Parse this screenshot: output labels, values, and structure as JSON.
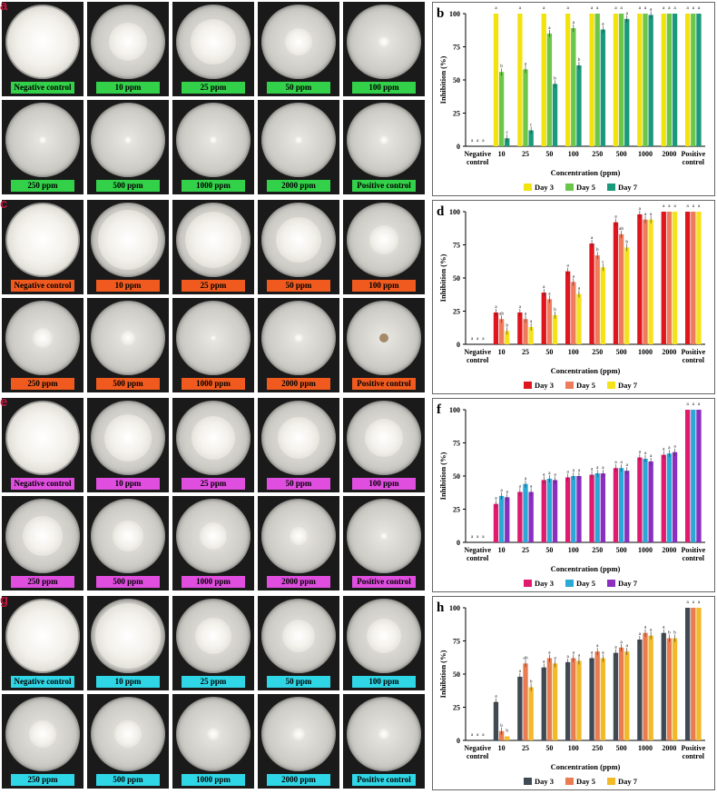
{
  "panels": [
    {
      "letter": "a",
      "label_color": "#33d14a",
      "labels": [
        "Negative control",
        "10 ppm",
        "25 ppm",
        "50 ppm",
        "100 ppm",
        "250 ppm",
        "500 ppm",
        "1000 ppm",
        "2000 ppm",
        "Positive control"
      ]
    },
    {
      "letter": "c",
      "label_color": "#f05a1e",
      "labels": [
        "Negative control",
        "10 ppm",
        "25 ppm",
        "50 ppm",
        "100 ppm",
        "250 ppm",
        "500 ppm",
        "1000 ppm",
        "2000 ppm",
        "Positive control"
      ]
    },
    {
      "letter": "e",
      "label_color": "#e04ee0",
      "labels": [
        "Negative control",
        "10 ppm",
        "25 ppm",
        "50 ppm",
        "100 ppm",
        "250 ppm",
        "500 ppm",
        "1000 ppm",
        "2000 ppm",
        "Positive control"
      ]
    },
    {
      "letter": "g",
      "label_color": "#2fd6e6",
      "labels": [
        "Negative control",
        "10 ppm",
        "25 ppm",
        "50 ppm",
        "100 ppm",
        "250 ppm",
        "500 ppm",
        "1000 ppm",
        "2000 ppm",
        "Positive control"
      ]
    }
  ],
  "chart_data": [
    {
      "letter": "b",
      "type": "bar",
      "title": "",
      "xlabel": "Concentration (ppm)",
      "ylabel": "Inhibition (%)",
      "ylim": [
        0,
        100
      ],
      "yticks": [
        0,
        25,
        50,
        75,
        100
      ],
      "categories": [
        "Negative control",
        "10",
        "25",
        "50",
        "100",
        "250",
        "500",
        "1000",
        "2000",
        "Positive control"
      ],
      "series": [
        {
          "name": "Day 3",
          "color": "#f2e30f",
          "values": [
            0,
            100,
            100,
            100,
            100,
            100,
            100,
            100,
            100,
            100
          ],
          "letters": [
            "a",
            "a",
            "a",
            "a",
            "a",
            "a",
            "a",
            "a",
            "a",
            "a"
          ]
        },
        {
          "name": "Day 5",
          "color": "#6cc64b",
          "values": [
            0,
            56,
            58,
            85,
            89,
            100,
            100,
            100,
            100,
            100
          ],
          "letters": [
            "a",
            "b",
            "a",
            "a",
            "a",
            "a",
            "a",
            "a",
            "a",
            "a"
          ]
        },
        {
          "name": "Day 7",
          "color": "#1a9a7a",
          "values": [
            0,
            6,
            12,
            47,
            61,
            88,
            96,
            99,
            100,
            100
          ],
          "letters": [
            "a",
            "c",
            "c",
            "b",
            "b",
            "a",
            "a",
            "a",
            "a",
            "a"
          ]
        }
      ]
    },
    {
      "letter": "d",
      "type": "bar",
      "title": "",
      "xlabel": "Concentration (ppm)",
      "ylabel": "Inhibition (%)",
      "ylim": [
        0,
        100
      ],
      "yticks": [
        0,
        25,
        50,
        75,
        100
      ],
      "categories": [
        "Negative control",
        "10",
        "25",
        "50",
        "100",
        "250",
        "500",
        "1000",
        "2000",
        "Positive control"
      ],
      "series": [
        {
          "name": "Day 3",
          "color": "#e0161e",
          "values": [
            0,
            24,
            24,
            39,
            55,
            76,
            92,
            98,
            100,
            100
          ],
          "letters": [
            "a",
            "a",
            "a",
            "a",
            "a",
            "a",
            "a",
            "a",
            "a",
            "a"
          ]
        },
        {
          "name": "Day 5",
          "color": "#ee7b5c",
          "values": [
            0,
            19,
            19,
            34,
            47,
            67,
            83,
            94,
            100,
            100
          ],
          "letters": [
            "a",
            "ab",
            "a",
            "a",
            "a",
            "b",
            "ab",
            "a",
            "a",
            "a"
          ]
        },
        {
          "name": "Day 7",
          "color": "#f6e21a",
          "values": [
            0,
            10,
            13,
            22,
            38,
            58,
            73,
            94,
            100,
            100
          ],
          "letters": [
            "a",
            "b",
            "a",
            "b",
            "a",
            "c",
            "b",
            "a",
            "a",
            "a"
          ]
        }
      ]
    },
    {
      "letter": "f",
      "type": "bar",
      "title": "",
      "xlabel": "Concentration (ppm)",
      "ylabel": "Inhibition (%)",
      "ylim": [
        0,
        100
      ],
      "yticks": [
        0,
        25,
        50,
        75,
        100
      ],
      "categories": [
        "Negative control",
        "10",
        "25",
        "50",
        "100",
        "250",
        "500",
        "1000",
        "2000",
        "Positive control"
      ],
      "series": [
        {
          "name": "Day 3",
          "color": "#e01a6e",
          "values": [
            0,
            29,
            38,
            47,
            49,
            51,
            56,
            64,
            66,
            100
          ],
          "letters": [
            "a",
            "a",
            "a",
            "a",
            "a",
            "a",
            "a",
            "a",
            "a",
            "a"
          ]
        },
        {
          "name": "Day 5",
          "color": "#2aa8d6",
          "values": [
            0,
            35,
            44,
            48,
            50,
            52,
            56,
            63,
            67,
            100
          ],
          "letters": [
            "a",
            "a",
            "a",
            "a",
            "a",
            "a",
            "a",
            "a",
            "a",
            "a"
          ]
        },
        {
          "name": "Day 7",
          "color": "#8a2fc0",
          "values": [
            0,
            34,
            38,
            47,
            50,
            52,
            54,
            61,
            68,
            100
          ],
          "letters": [
            "a",
            "a",
            "a",
            "a",
            "a",
            "a",
            "a",
            "a",
            "a",
            "a"
          ]
        }
      ]
    },
    {
      "letter": "h",
      "type": "bar",
      "title": "",
      "xlabel": "Concentration (ppm)",
      "ylabel": "Inhibition (%)",
      "ylim": [
        0,
        100
      ],
      "yticks": [
        0,
        25,
        50,
        75,
        100
      ],
      "categories": [
        "Negative control",
        "10",
        "25",
        "50",
        "100",
        "250",
        "500",
        "1000",
        "2000",
        "Positive control"
      ],
      "series": [
        {
          "name": "Day 3",
          "color": "#404a55",
          "values": [
            0,
            29,
            48,
            55,
            59,
            62,
            66,
            76,
            81,
            100
          ],
          "letters": [
            "a",
            "a",
            "a",
            "a",
            "a",
            "a",
            "a",
            "a",
            "a",
            "a"
          ]
        },
        {
          "name": "Day 5",
          "color": "#ea7c52",
          "values": [
            0,
            7,
            58,
            62,
            62,
            67,
            70,
            81,
            77,
            100
          ],
          "letters": [
            "a",
            "b",
            "ab",
            "a",
            "a",
            "a",
            "a",
            "a",
            "b",
            "a"
          ]
        },
        {
          "name": "Day 7",
          "color": "#f2b928",
          "values": [
            0,
            3,
            40,
            58,
            60,
            62,
            67,
            79,
            77,
            100
          ],
          "letters": [
            "a",
            "b",
            "b",
            "a",
            "a",
            "a",
            "a",
            "a",
            "b",
            "a"
          ]
        }
      ]
    }
  ]
}
